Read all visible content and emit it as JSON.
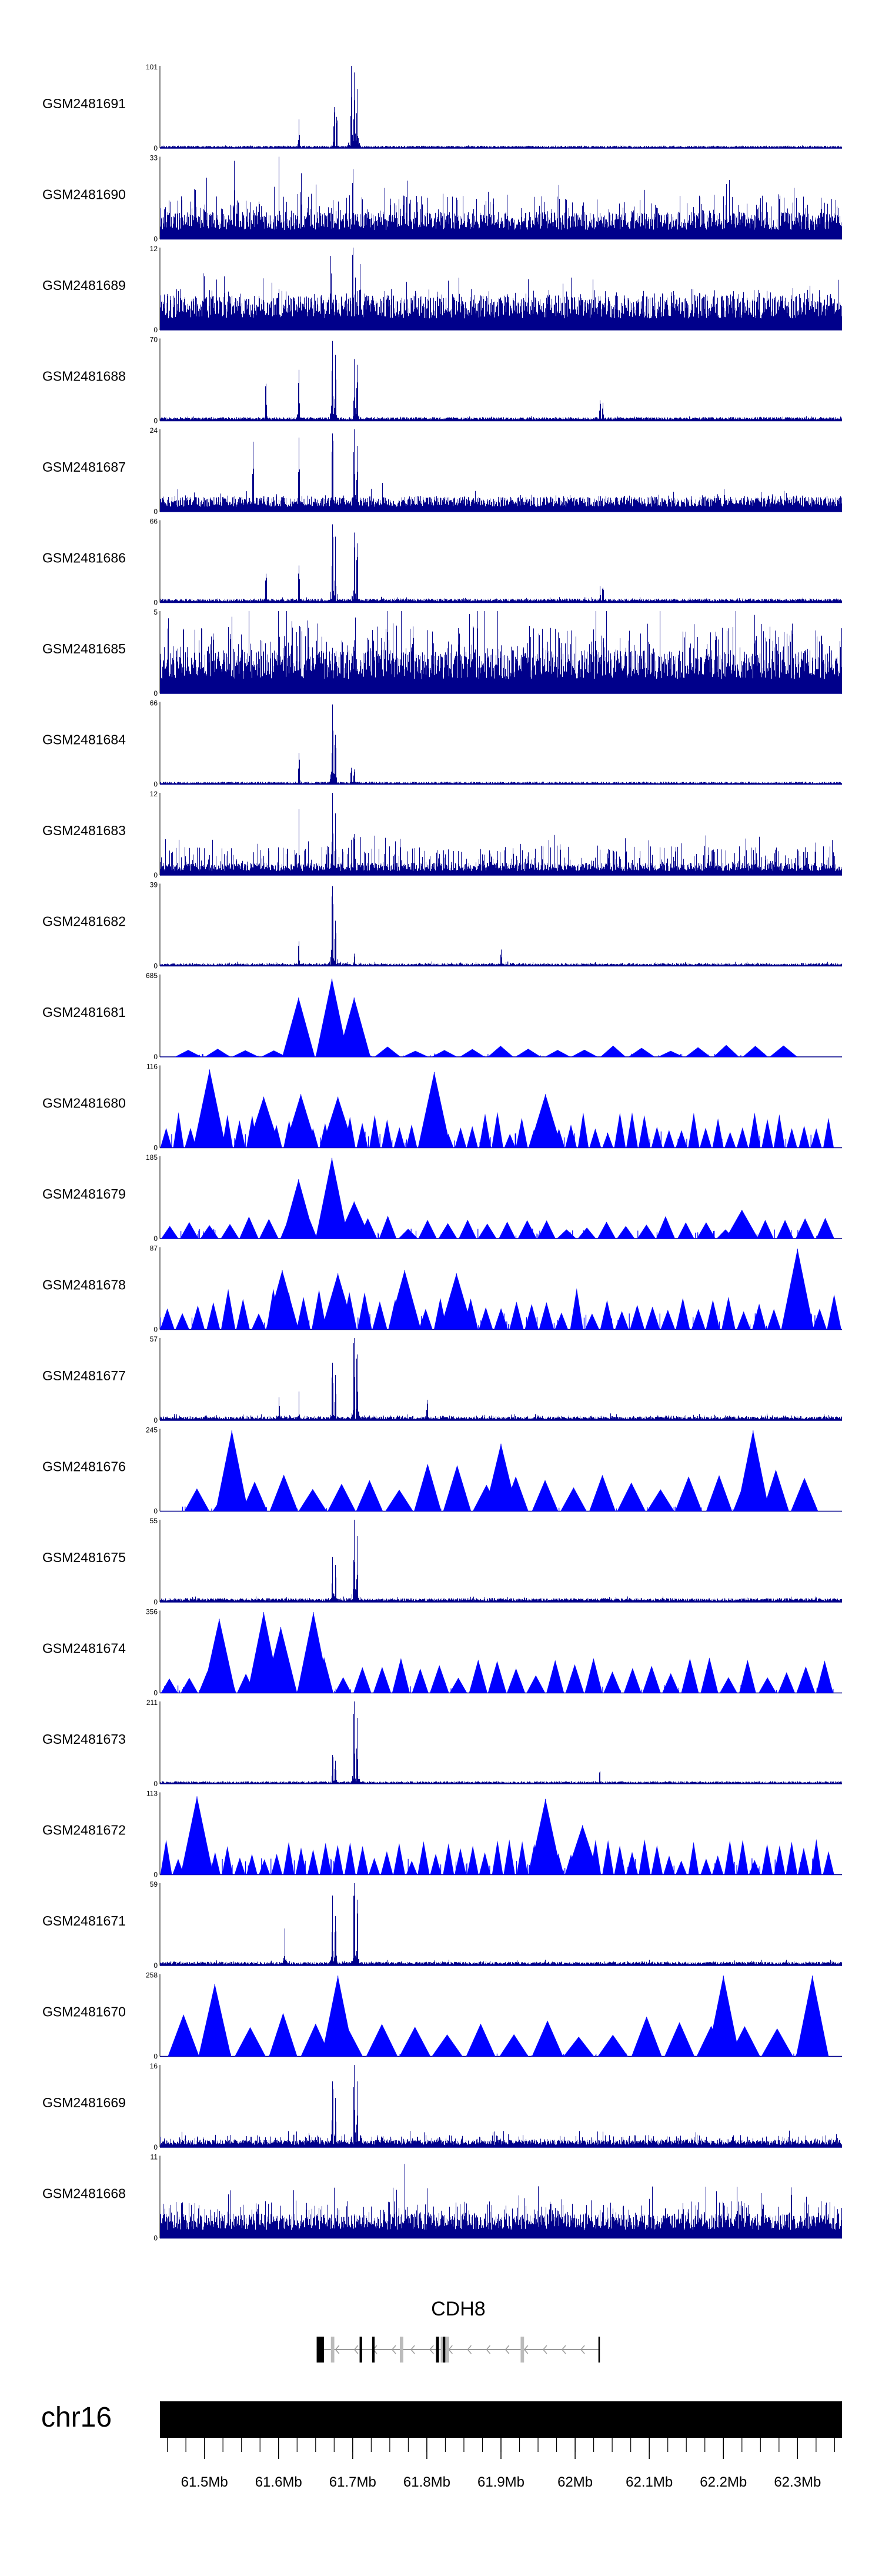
{
  "chart_data": {
    "type": "area",
    "xlim": [
      61.44,
      62.36
    ],
    "tracks": [
      {
        "name": "GSM2481691",
        "ymax": "101",
        "ymin": "0",
        "style": "dense",
        "noise": 0.025,
        "base": 0.02,
        "peaks": [
          {
            "x": 61.627,
            "h": 0.35
          },
          {
            "x": 61.675,
            "h": 0.5
          },
          {
            "x": 61.678,
            "h": 0.38
          },
          {
            "x": 61.698,
            "h": 1.0
          },
          {
            "x": 61.702,
            "h": 0.92
          },
          {
            "x": 61.706,
            "h": 0.72
          }
        ]
      },
      {
        "name": "GSM2481690",
        "ymax": "33",
        "ymin": "0",
        "style": "dense",
        "noise": 0.55,
        "base": 0.22,
        "peaks": [
          {
            "x": 61.54,
            "h": 0.95
          },
          {
            "x": 61.6,
            "h": 1.0
          },
          {
            "x": 61.63,
            "h": 0.8
          },
          {
            "x": 61.7,
            "h": 0.85
          }
        ]
      },
      {
        "name": "GSM2481689",
        "ymax": "12",
        "ymin": "0",
        "style": "dense",
        "noise": 0.5,
        "base": 0.28,
        "peaks": [
          {
            "x": 61.67,
            "h": 0.9
          },
          {
            "x": 61.7,
            "h": 1.0
          },
          {
            "x": 61.71,
            "h": 0.8
          }
        ]
      },
      {
        "name": "GSM2481688",
        "ymax": "70",
        "ymin": "0",
        "style": "dense",
        "noise": 0.04,
        "base": 0.03,
        "peaks": [
          {
            "x": 61.583,
            "h": 0.45
          },
          {
            "x": 61.627,
            "h": 0.62
          },
          {
            "x": 61.672,
            "h": 0.97
          },
          {
            "x": 61.676,
            "h": 0.8
          },
          {
            "x": 61.702,
            "h": 0.75
          },
          {
            "x": 61.706,
            "h": 0.68
          },
          {
            "x": 62.033,
            "h": 0.25
          },
          {
            "x": 62.037,
            "h": 0.22
          }
        ]
      },
      {
        "name": "GSM2481687",
        "ymax": "24",
        "ymin": "0",
        "style": "dense",
        "noise": 0.2,
        "base": 0.12,
        "peaks": [
          {
            "x": 61.565,
            "h": 0.85
          },
          {
            "x": 61.627,
            "h": 0.9
          },
          {
            "x": 61.672,
            "h": 0.95
          },
          {
            "x": 61.702,
            "h": 1.0
          },
          {
            "x": 61.706,
            "h": 0.8
          },
          {
            "x": 61.74,
            "h": 0.35
          }
        ]
      },
      {
        "name": "GSM2481686",
        "ymax": "66",
        "ymin": "0",
        "style": "dense",
        "noise": 0.05,
        "base": 0.03,
        "peaks": [
          {
            "x": 61.583,
            "h": 0.35
          },
          {
            "x": 61.627,
            "h": 0.45
          },
          {
            "x": 61.672,
            "h": 0.95
          },
          {
            "x": 61.676,
            "h": 0.8
          },
          {
            "x": 61.702,
            "h": 0.85
          },
          {
            "x": 61.706,
            "h": 0.72
          },
          {
            "x": 62.033,
            "h": 0.2
          },
          {
            "x": 62.037,
            "h": 0.18
          }
        ]
      },
      {
        "name": "GSM2481685",
        "ymax": "5",
        "ymin": "0",
        "style": "dense",
        "noise": 0.85,
        "base": 0.35,
        "peaks": []
      },
      {
        "name": "GSM2481684",
        "ymax": "66",
        "ymin": "0",
        "style": "dense",
        "noise": 0.025,
        "base": 0.02,
        "peaks": [
          {
            "x": 61.627,
            "h": 0.38
          },
          {
            "x": 61.672,
            "h": 0.97
          },
          {
            "x": 61.676,
            "h": 0.6
          },
          {
            "x": 61.698,
            "h": 0.2
          },
          {
            "x": 61.702,
            "h": 0.18
          }
        ]
      },
      {
        "name": "GSM2481683",
        "ymax": "12",
        "ymin": "0",
        "style": "dense",
        "noise": 0.35,
        "base": 0.1,
        "peaks": [
          {
            "x": 61.627,
            "h": 0.8
          },
          {
            "x": 61.672,
            "h": 1.0
          },
          {
            "x": 61.676,
            "h": 0.75
          },
          {
            "x": 61.702,
            "h": 0.5
          }
        ]
      },
      {
        "name": "GSM2481682",
        "ymax": "39",
        "ymin": "0",
        "style": "dense",
        "noise": 0.04,
        "base": 0.02,
        "peaks": [
          {
            "x": 61.627,
            "h": 0.3
          },
          {
            "x": 61.672,
            "h": 0.97
          },
          {
            "x": 61.676,
            "h": 0.55
          },
          {
            "x": 61.702,
            "h": 0.15
          },
          {
            "x": 61.9,
            "h": 0.2
          }
        ]
      },
      {
        "name": "GSM2481681",
        "ymax": "685",
        "ymin": "0",
        "style": "triangles",
        "noise": 0.02,
        "base": 0.0,
        "tri_h": 0.1,
        "tri_range": [
          61.46,
          62.3
        ],
        "tri_n": 22,
        "peaks": [
          {
            "x": 61.627,
            "h": 0.72
          },
          {
            "x": 61.672,
            "h": 0.95
          },
          {
            "x": 61.702,
            "h": 0.72
          }
        ]
      },
      {
        "name": "GSM2481680",
        "ymax": "116",
        "ymin": "0",
        "style": "triangles",
        "noise": 0.1,
        "base": 0.0,
        "tri_h": 0.3,
        "tri_range": [
          61.44,
          62.35
        ],
        "tri_n": 55,
        "peaks": [
          {
            "x": 61.507,
            "h": 0.95
          },
          {
            "x": 61.58,
            "h": 0.62
          },
          {
            "x": 61.63,
            "h": 0.65
          },
          {
            "x": 61.68,
            "h": 0.62
          },
          {
            "x": 61.81,
            "h": 0.92
          },
          {
            "x": 61.96,
            "h": 0.65
          }
        ]
      },
      {
        "name": "GSM2481679",
        "ymax": "185",
        "ymin": "0",
        "style": "triangles",
        "noise": 0.06,
        "base": 0.0,
        "tri_h": 0.2,
        "tri_range": [
          61.44,
          62.35
        ],
        "tri_n": 34,
        "peaks": [
          {
            "x": 61.627,
            "h": 0.72
          },
          {
            "x": 61.672,
            "h": 0.98
          },
          {
            "x": 61.702,
            "h": 0.45
          },
          {
            "x": 62.225,
            "h": 0.35
          }
        ]
      },
      {
        "name": "GSM2481678",
        "ymax": "87",
        "ymin": "0",
        "style": "triangles",
        "noise": 0.1,
        "base": 0.0,
        "tri_h": 0.35,
        "tri_range": [
          61.44,
          62.36
        ],
        "tri_n": 45,
        "peaks": [
          {
            "x": 61.605,
            "h": 0.72
          },
          {
            "x": 61.68,
            "h": 0.68
          },
          {
            "x": 61.77,
            "h": 0.72
          },
          {
            "x": 61.84,
            "h": 0.68
          },
          {
            "x": 62.3,
            "h": 0.98
          }
        ]
      },
      {
        "name": "GSM2481677",
        "ymax": "57",
        "ymin": "0",
        "style": "dense",
        "noise": 0.06,
        "base": 0.03,
        "peaks": [
          {
            "x": 61.6,
            "h": 0.28
          },
          {
            "x": 61.627,
            "h": 0.35
          },
          {
            "x": 61.672,
            "h": 0.7
          },
          {
            "x": 61.676,
            "h": 0.55
          },
          {
            "x": 61.702,
            "h": 1.0
          },
          {
            "x": 61.706,
            "h": 0.8
          },
          {
            "x": 61.8,
            "h": 0.25
          }
        ]
      },
      {
        "name": "GSM2481676",
        "ymax": "245",
        "ymin": "0",
        "style": "triangles",
        "noise": 0.03,
        "base": 0.0,
        "tri_h": 0.42,
        "tri_range": [
          61.47,
          62.33
        ],
        "tri_n": 22,
        "peaks": [
          {
            "x": 61.537,
            "h": 0.98
          },
          {
            "x": 61.9,
            "h": 0.82
          },
          {
            "x": 62.24,
            "h": 0.98
          }
        ]
      },
      {
        "name": "GSM2481675",
        "ymax": "55",
        "ymin": "0",
        "style": "dense",
        "noise": 0.05,
        "base": 0.03,
        "peaks": [
          {
            "x": 61.672,
            "h": 0.55
          },
          {
            "x": 61.676,
            "h": 0.45
          },
          {
            "x": 61.702,
            "h": 1.0
          },
          {
            "x": 61.706,
            "h": 0.8
          }
        ]
      },
      {
        "name": "GSM2481674",
        "ymax": "356",
        "ymin": "0",
        "style": "triangles",
        "noise": 0.05,
        "base": 0.0,
        "tri_h": 0.3,
        "tri_range": [
          61.44,
          62.35
        ],
        "tri_n": 35,
        "peaks": [
          {
            "x": 61.52,
            "h": 0.9
          },
          {
            "x": 61.58,
            "h": 0.98
          },
          {
            "x": 61.603,
            "h": 0.8
          },
          {
            "x": 61.647,
            "h": 0.98
          }
        ]
      },
      {
        "name": "GSM2481673",
        "ymax": "211",
        "ymin": "0",
        "style": "dense",
        "noise": 0.02,
        "base": 0.02,
        "peaks": [
          {
            "x": 61.672,
            "h": 0.35
          },
          {
            "x": 61.676,
            "h": 0.28
          },
          {
            "x": 61.702,
            "h": 1.0
          },
          {
            "x": 61.706,
            "h": 0.8
          },
          {
            "x": 62.033,
            "h": 0.15
          }
        ]
      },
      {
        "name": "GSM2481672",
        "ymax": "113",
        "ymin": "0",
        "style": "triangles",
        "noise": 0.1,
        "base": 0.0,
        "tri_h": 0.3,
        "tri_range": [
          61.44,
          62.35
        ],
        "tri_n": 55,
        "peaks": [
          {
            "x": 61.49,
            "h": 0.95
          },
          {
            "x": 61.96,
            "h": 0.92
          },
          {
            "x": 62.01,
            "h": 0.6
          }
        ]
      },
      {
        "name": "GSM2481671",
        "ymax": "59",
        "ymin": "0",
        "style": "dense",
        "noise": 0.05,
        "base": 0.03,
        "peaks": [
          {
            "x": 61.608,
            "h": 0.45
          },
          {
            "x": 61.672,
            "h": 0.85
          },
          {
            "x": 61.676,
            "h": 0.6
          },
          {
            "x": 61.702,
            "h": 1.0
          },
          {
            "x": 61.706,
            "h": 0.8
          }
        ]
      },
      {
        "name": "GSM2481670",
        "ymax": "258",
        "ymin": "0",
        "style": "triangles",
        "noise": 0.02,
        "base": 0.0,
        "tri_h": 0.38,
        "tri_range": [
          61.45,
          62.34
        ],
        "tri_n": 20,
        "peaks": [
          {
            "x": 61.514,
            "h": 0.88
          },
          {
            "x": 61.68,
            "h": 0.98
          },
          {
            "x": 62.2,
            "h": 0.98
          },
          {
            "x": 62.32,
            "h": 0.98
          }
        ]
      },
      {
        "name": "GSM2481669",
        "ymax": "16",
        "ymin": "0",
        "style": "dense",
        "noise": 0.15,
        "base": 0.06,
        "peaks": [
          {
            "x": 61.672,
            "h": 0.8
          },
          {
            "x": 61.676,
            "h": 0.6
          },
          {
            "x": 61.702,
            "h": 1.0
          },
          {
            "x": 61.706,
            "h": 0.8
          }
        ]
      },
      {
        "name": "GSM2481668",
        "ymax": "11",
        "ymin": "0",
        "style": "dense",
        "noise": 0.45,
        "base": 0.2,
        "peaks": [
          {
            "x": 61.77,
            "h": 0.9
          }
        ]
      }
    ],
    "gene": {
      "name": "CDH8",
      "start": 61.6514,
      "end": 62.0334,
      "strand": "-",
      "exons": [
        {
          "s": 61.6514,
          "e": 61.6612
        },
        {
          "s": 61.7093,
          "e": 61.7127
        },
        {
          "s": 61.7262,
          "e": 61.7296
        },
        {
          "s": 61.8124,
          "e": 61.8164
        },
        {
          "s": 61.8215,
          "e": 61.8249
        },
        {
          "s": 62.0314,
          "e": 62.0334
        }
      ],
      "faint_exons": [
        {
          "s": 61.6706,
          "e": 61.6752
        },
        {
          "s": 61.7636,
          "e": 61.7682
        },
        {
          "s": 61.8187,
          "e": 61.8226
        },
        {
          "s": 61.8249,
          "e": 61.8301
        },
        {
          "s": 61.9265,
          "e": 61.9311
        }
      ]
    },
    "chromosome": "chr16",
    "xticks_major": [
      {
        "x": 61.5,
        "label": "61.5Mb"
      },
      {
        "x": 61.6,
        "label": "61.6Mb"
      },
      {
        "x": 61.7,
        "label": "61.7Mb"
      },
      {
        "x": 61.8,
        "label": "61.8Mb"
      },
      {
        "x": 61.9,
        "label": "61.9Mb"
      },
      {
        "x": 62.0,
        "label": "62Mb"
      },
      {
        "x": 62.1,
        "label": "62.1Mb"
      },
      {
        "x": 62.2,
        "label": "62.2Mb"
      },
      {
        "x": 62.3,
        "label": "62.3Mb"
      }
    ],
    "xtick_minor_step": 0.025,
    "colors": {
      "fill": "#0000ff",
      "dense": "#00008b",
      "axis": "#000000",
      "exon": "#000000",
      "faint_exon": "#bbbbbb",
      "intron": "#999999"
    }
  }
}
